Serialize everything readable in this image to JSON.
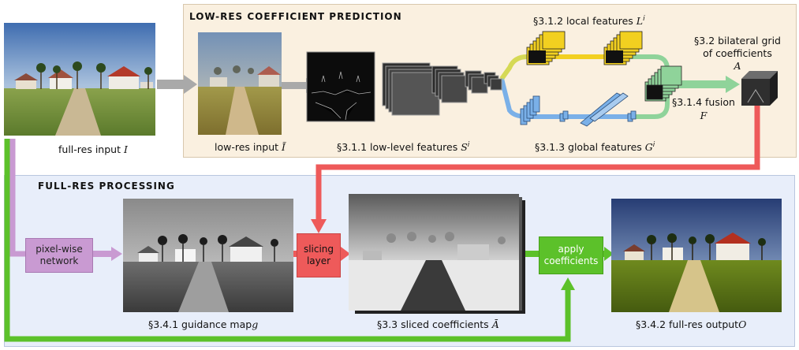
{
  "low_res_panel": {
    "title": "LOW-RES COEFFICIENT PREDICTION"
  },
  "full_res_panel": {
    "title": "FULL-RES PROCESSING"
  },
  "captions": {
    "full_res_input": "full-res input",
    "full_res_input_sym": "I",
    "low_res_input": "low-res input",
    "low_res_input_sym": "Ĩ",
    "low_level": "§3.1.1 low-level features",
    "low_level_sym": "S",
    "low_level_sup": "i",
    "local_features": "§3.1.2 local features",
    "local_features_sym": "L",
    "local_features_sup": "i",
    "global_features": "§3.1.3 global features",
    "global_features_sym": "G",
    "global_features_sup": "i",
    "fusion": "§3.1.4 fusion",
    "fusion_sym": "F",
    "bilateral_grid_line1": "§3.2 bilateral grid",
    "bilateral_grid_line2": "of coefficients",
    "bilateral_grid_sym": "A",
    "guidance_map": "§3.4.1 guidance map",
    "guidance_map_sym": "g",
    "sliced_coeffs": "§3.3 sliced coefficients",
    "sliced_coeffs_sym": "Ā",
    "full_res_output": "§3.4.2 full-res output",
    "full_res_output_sym": "O"
  },
  "ops": {
    "pixel_wise_line1": "pixel-wise",
    "pixel_wise_line2": "network",
    "slicing_line1": "slicing",
    "slicing_line2": "layer",
    "apply_line1": "apply",
    "apply_line2": "coefficients"
  },
  "colors": {
    "purple": "#c99ad2",
    "red": "#ee5a5a",
    "green": "#5cc12a",
    "gray_arrow": "#a9a9a9",
    "yellow_path": "#f2d020",
    "blue_path": "#7ab0e8",
    "teal_path": "#8fd39a"
  },
  "icons": [
    "photo-thumbnail",
    "feature-stack",
    "bilateral-grid-cube"
  ]
}
